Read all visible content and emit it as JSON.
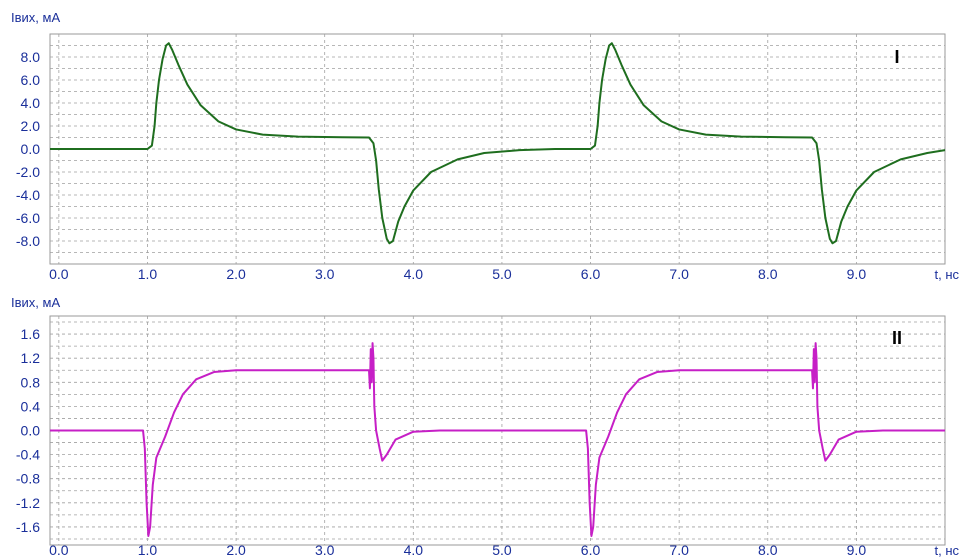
{
  "colors": {
    "axis_text": "#1a2f9a",
    "frame": "#9a9a9a",
    "grid": "#a0a0a0",
    "panel_I_line": "#1f6e1f",
    "panel_II_line": "#c61fc6",
    "roman_label": "#000000"
  },
  "chart_data": [
    {
      "type": "line",
      "panel_label": "I",
      "ylabel": "Iвих, мА",
      "xlabel": "t, нс",
      "xlim": [
        -0.1,
        10.0
      ],
      "ylim": [
        -10.0,
        10.0
      ],
      "x_ticks": [
        "0.0",
        "1.0",
        "2.0",
        "3.0",
        "4.0",
        "5.0",
        "6.0",
        "7.0",
        "8.0",
        "9.0"
      ],
      "y_ticks": [
        "8.0",
        "6.0",
        "4.0",
        "2.0",
        "0.0",
        "-2.0",
        "-4.0",
        "-6.0",
        "-8.0"
      ],
      "x_tick_values": [
        0,
        1,
        2,
        3,
        4,
        5,
        6,
        7,
        8,
        9
      ],
      "y_tick_values": [
        8,
        6,
        4,
        2,
        0,
        -2,
        -4,
        -6,
        -8
      ],
      "grid": true,
      "series": [
        {
          "color": "#1f6e1f",
          "points": [
            [
              -0.1,
              0.0
            ],
            [
              0.9,
              0.0
            ],
            [
              1.0,
              0.0
            ],
            [
              1.05,
              0.3
            ],
            [
              1.08,
              2.0
            ],
            [
              1.1,
              4.0
            ],
            [
              1.13,
              6.0
            ],
            [
              1.17,
              7.8
            ],
            [
              1.21,
              9.0
            ],
            [
              1.24,
              9.2
            ],
            [
              1.28,
              8.6
            ],
            [
              1.35,
              7.3
            ],
            [
              1.45,
              5.6
            ],
            [
              1.6,
              3.8
            ],
            [
              1.8,
              2.4
            ],
            [
              2.0,
              1.7
            ],
            [
              2.3,
              1.25
            ],
            [
              2.7,
              1.08
            ],
            [
              3.2,
              1.02
            ],
            [
              3.5,
              1.0
            ],
            [
              3.55,
              0.5
            ],
            [
              3.58,
              -1.0
            ],
            [
              3.61,
              -3.5
            ],
            [
              3.65,
              -6.0
            ],
            [
              3.7,
              -7.8
            ],
            [
              3.73,
              -8.2
            ],
            [
              3.77,
              -8.0
            ],
            [
              3.83,
              -6.3
            ],
            [
              3.9,
              -5.0
            ],
            [
              4.0,
              -3.6
            ],
            [
              4.2,
              -2.0
            ],
            [
              4.5,
              -0.9
            ],
            [
              4.8,
              -0.35
            ],
            [
              5.2,
              -0.1
            ],
            [
              5.6,
              0.0
            ],
            [
              6.0,
              0.0
            ],
            [
              6.05,
              0.3
            ],
            [
              6.08,
              2.0
            ],
            [
              6.1,
              4.0
            ],
            [
              6.13,
              6.0
            ],
            [
              6.17,
              7.8
            ],
            [
              6.21,
              9.0
            ],
            [
              6.24,
              9.2
            ],
            [
              6.28,
              8.6
            ],
            [
              6.35,
              7.3
            ],
            [
              6.45,
              5.6
            ],
            [
              6.6,
              3.8
            ],
            [
              6.8,
              2.4
            ],
            [
              7.0,
              1.7
            ],
            [
              7.3,
              1.25
            ],
            [
              7.7,
              1.08
            ],
            [
              8.2,
              1.02
            ],
            [
              8.5,
              1.0
            ],
            [
              8.55,
              0.5
            ],
            [
              8.58,
              -1.0
            ],
            [
              8.61,
              -3.5
            ],
            [
              8.65,
              -6.0
            ],
            [
              8.7,
              -7.8
            ],
            [
              8.73,
              -8.2
            ],
            [
              8.77,
              -8.0
            ],
            [
              8.83,
              -6.3
            ],
            [
              8.9,
              -5.0
            ],
            [
              9.0,
              -3.6
            ],
            [
              9.2,
              -2.0
            ],
            [
              9.5,
              -0.9
            ],
            [
              9.8,
              -0.35
            ],
            [
              10.0,
              -0.1
            ]
          ]
        }
      ]
    },
    {
      "type": "line",
      "panel_label": "II",
      "ylabel": "Iвих, мА",
      "xlabel": "t, нс",
      "xlim": [
        -0.1,
        10.0
      ],
      "ylim": [
        -1.9,
        1.9
      ],
      "x_ticks": [
        "0.0",
        "1.0",
        "2.0",
        "3.0",
        "4.0",
        "5.0",
        "6.0",
        "7.0",
        "8.0",
        "9.0"
      ],
      "y_ticks": [
        "1.6",
        "1.2",
        "0.8",
        "0.4",
        "0.0",
        "-0.4",
        "-0.8",
        "-1.2",
        "-1.6"
      ],
      "x_tick_values": [
        0,
        1,
        2,
        3,
        4,
        5,
        6,
        7,
        8,
        9
      ],
      "y_tick_values": [
        1.6,
        1.2,
        0.8,
        0.4,
        0,
        -0.4,
        -0.8,
        -1.2,
        -1.6
      ],
      "grid": true,
      "series": [
        {
          "color": "#c61fc6",
          "points": [
            [
              -0.1,
              0.0
            ],
            [
              0.95,
              0.0
            ],
            [
              0.97,
              -0.3
            ],
            [
              0.99,
              -1.2
            ],
            [
              1.01,
              -1.75
            ],
            [
              1.03,
              -1.6
            ],
            [
              1.06,
              -0.9
            ],
            [
              1.1,
              -0.45
            ],
            [
              1.2,
              -0.1
            ],
            [
              1.3,
              0.3
            ],
            [
              1.4,
              0.6
            ],
            [
              1.55,
              0.85
            ],
            [
              1.75,
              0.97
            ],
            [
              2.0,
              1.0
            ],
            [
              3.0,
              1.0
            ],
            [
              3.5,
              1.0
            ],
            [
              3.51,
              0.7
            ],
            [
              3.52,
              1.35
            ],
            [
              3.53,
              0.8
            ],
            [
              3.54,
              1.45
            ],
            [
              3.55,
              1.2
            ],
            [
              3.56,
              0.4
            ],
            [
              3.58,
              0.0
            ],
            [
              3.62,
              -0.3
            ],
            [
              3.65,
              -0.5
            ],
            [
              3.7,
              -0.4
            ],
            [
              3.8,
              -0.15
            ],
            [
              4.0,
              -0.02
            ],
            [
              4.3,
              0.0
            ],
            [
              5.95,
              0.0
            ],
            [
              5.97,
              -0.3
            ],
            [
              5.99,
              -1.2
            ],
            [
              6.01,
              -1.75
            ],
            [
              6.03,
              -1.6
            ],
            [
              6.06,
              -0.9
            ],
            [
              6.1,
              -0.45
            ],
            [
              6.2,
              -0.1
            ],
            [
              6.3,
              0.3
            ],
            [
              6.4,
              0.6
            ],
            [
              6.55,
              0.85
            ],
            [
              6.75,
              0.97
            ],
            [
              7.0,
              1.0
            ],
            [
              8.0,
              1.0
            ],
            [
              8.5,
              1.0
            ],
            [
              8.51,
              0.7
            ],
            [
              8.52,
              1.35
            ],
            [
              8.53,
              0.8
            ],
            [
              8.54,
              1.45
            ],
            [
              8.55,
              1.2
            ],
            [
              8.56,
              0.4
            ],
            [
              8.58,
              0.0
            ],
            [
              8.62,
              -0.3
            ],
            [
              8.65,
              -0.5
            ],
            [
              8.7,
              -0.4
            ],
            [
              8.8,
              -0.15
            ],
            [
              9.0,
              -0.02
            ],
            [
              9.3,
              0.0
            ],
            [
              10.0,
              0.0
            ]
          ]
        }
      ]
    }
  ]
}
